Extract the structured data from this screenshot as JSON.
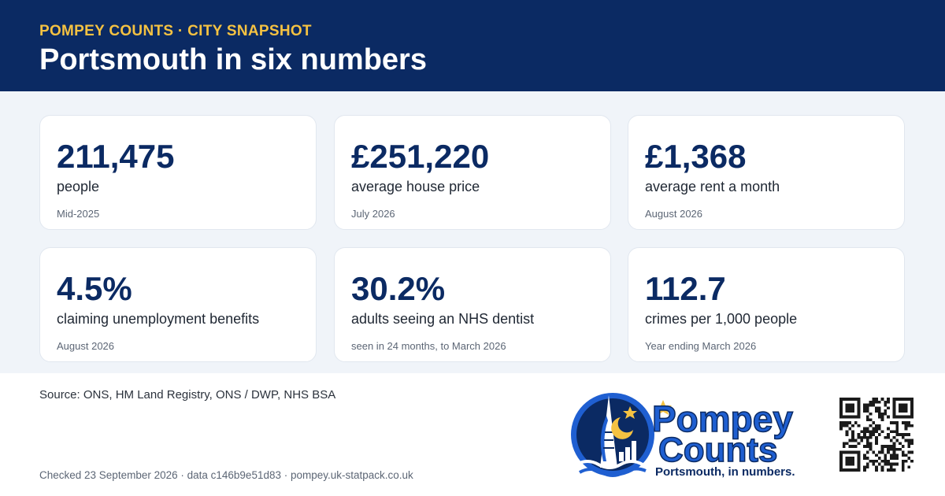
{
  "header": {
    "kicker": "POMPEY COUNTS · CITY SNAPSHOT",
    "title": "Portsmouth in six numbers"
  },
  "stats": [
    {
      "value": "211,475",
      "label": "people",
      "date": "Mid-2025"
    },
    {
      "value": "£251,220",
      "label": "average house price",
      "date": "July 2026"
    },
    {
      "value": "£1,368",
      "label": "average rent a month",
      "date": "August 2026"
    },
    {
      "value": "4.5%",
      "label": "claiming unemployment benefits",
      "date": "August 2026"
    },
    {
      "value": "30.2%",
      "label": "adults seeing an NHS dentist",
      "date": "seen in 24 months, to March 2026"
    },
    {
      "value": "112.7",
      "label": "crimes per 1,000 people",
      "date": "Year ending March 2026"
    }
  ],
  "footer": {
    "source": "Source: ONS, HM Land Registry, ONS / DWP, NHS BSA",
    "checked": "Checked 23 September 2026 · data c146b9e51d83 · pompey.uk-statpack.co.uk"
  },
  "brand": {
    "logo_word_1": "Pompey",
    "logo_word_2": "Counts",
    "tagline": "Portsmouth, in numbers."
  },
  "colors": {
    "navy": "#0b2a63",
    "gold": "#f5c242",
    "blue": "#1f5fd1",
    "background": "#f0f4f9"
  }
}
